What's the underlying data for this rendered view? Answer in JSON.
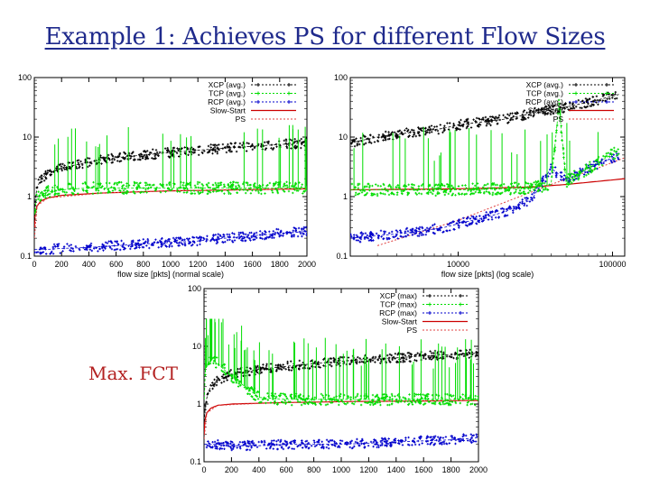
{
  "slide": {
    "title": "Example 1: Achieves PS for different Flow Sizes",
    "annotation": "Max. FCT"
  },
  "colors": {
    "xcp": "#000000",
    "tcp": "#00dd00",
    "rcp": "#0000cc",
    "slowstart": "#cc0000",
    "ps": "#e04040",
    "title": "#1f2a8c"
  },
  "chart_data": [
    {
      "type": "scatter",
      "xlabel": "flow size [pkts] (normal scale)",
      "x_scale": "linear",
      "y_scale": "log",
      "xlim": [
        0,
        2000
      ],
      "ylim": [
        0.1,
        100
      ],
      "xticks": [
        0,
        200,
        400,
        600,
        800,
        1000,
        1200,
        1400,
        1600,
        1800,
        2000
      ],
      "yticks": [
        0.1,
        1,
        10,
        100
      ],
      "legend_position": "top-right",
      "legend": [
        "XCP (avg.)",
        "TCP (avg.)",
        "RCP (avg.)",
        "Slow-Start",
        "PS"
      ],
      "series": [
        {
          "name": "XCP (avg.)",
          "color": "#000000",
          "style": "points",
          "x": [
            2,
            5,
            10,
            20,
            50,
            100,
            200,
            300,
            400,
            500,
            600,
            800,
            1000,
            1200,
            1400,
            1600,
            1800,
            2000
          ],
          "values": [
            0.4,
            0.7,
            1.0,
            1.4,
            2.0,
            2.5,
            3.0,
            3.4,
            3.8,
            4.2,
            4.5,
            5.0,
            5.5,
            6.0,
            6.5,
            7.0,
            7.5,
            8.0
          ]
        },
        {
          "name": "TCP (avg.)",
          "color": "#00dd00",
          "style": "points",
          "x": [
            2,
            10,
            30,
            50,
            100,
            200,
            300,
            400,
            500,
            600,
            800,
            1000,
            1200,
            1400,
            1600,
            1800,
            2000
          ],
          "values": [
            0.5,
            0.8,
            1.0,
            1.1,
            1.2,
            1.3,
            1.35,
            1.4,
            1.4,
            1.4,
            1.4,
            1.4,
            1.4,
            1.4,
            1.4,
            1.4,
            1.4
          ]
        },
        {
          "name": "RCP (avg.)",
          "color": "#0000cc",
          "style": "points",
          "x": [
            2,
            100,
            200,
            400,
            600,
            800,
            1000,
            1200,
            1400,
            1600,
            1800,
            2000
          ],
          "values": [
            0.13,
            0.13,
            0.135,
            0.14,
            0.15,
            0.16,
            0.17,
            0.18,
            0.2,
            0.22,
            0.24,
            0.26
          ]
        },
        {
          "name": "Slow-Start",
          "color": "#cc0000",
          "style": "line",
          "x": [
            1,
            5,
            20,
            50,
            100,
            200,
            500,
            1000,
            2000
          ],
          "values": [
            0.3,
            0.5,
            0.7,
            0.85,
            0.95,
            1.05,
            1.15,
            1.25,
            1.35
          ]
        },
        {
          "name": "PS",
          "color": "#e04040",
          "style": "dotted",
          "x": [
            1,
            20,
            100,
            500,
            1000,
            2000
          ],
          "values": [
            0.2,
            0.7,
            0.95,
            1.15,
            1.25,
            1.35
          ]
        }
      ]
    },
    {
      "type": "scatter",
      "xlabel": "flow size [pkts] (log scale)",
      "x_scale": "log",
      "y_scale": "log",
      "xlim": [
        2000,
        120000
      ],
      "ylim": [
        0.1,
        100
      ],
      "xticks": [
        10000,
        100000
      ],
      "yticks": [
        0.1,
        1,
        10,
        100
      ],
      "legend_position": "top-right",
      "legend": [
        "XCP (avg.)",
        "TCP (avg.)",
        "RCP (avg.)",
        "Slow-Start",
        "PS"
      ],
      "series": [
        {
          "name": "XCP (avg.)",
          "color": "#000000",
          "style": "points",
          "x": [
            2000,
            3000,
            5000,
            8000,
            10000,
            20000,
            30000,
            50000,
            80000,
            110000
          ],
          "values": [
            8,
            10,
            12,
            14,
            16,
            20,
            25,
            32,
            42,
            52
          ]
        },
        {
          "name": "TCP (avg.)",
          "color": "#00dd00",
          "style": "points",
          "x": [
            2000,
            5000,
            10000,
            20000,
            30000,
            40000,
            45000,
            50000,
            70000,
            110000
          ],
          "values": [
            1.3,
            1.3,
            1.3,
            1.35,
            1.4,
            1.6,
            35,
            1.8,
            3,
            6
          ]
        },
        {
          "name": "RCP (avg.)",
          "color": "#0000cc",
          "style": "points",
          "x": [
            2000,
            3000,
            5000,
            8000,
            10000,
            15000,
            20000,
            30000,
            40000,
            50000,
            70000,
            110000
          ],
          "values": [
            0.2,
            0.22,
            0.25,
            0.3,
            0.35,
            0.45,
            0.55,
            0.9,
            3,
            1.9,
            3,
            5
          ]
        },
        {
          "name": "Slow-Start",
          "color": "#cc0000",
          "style": "line",
          "x": [
            2000,
            10000,
            30000,
            50000,
            80000,
            120000
          ],
          "values": [
            1.3,
            1.35,
            1.45,
            1.6,
            1.8,
            2.0
          ]
        },
        {
          "name": "PS",
          "color": "#e04040",
          "style": "dotted",
          "x": [
            3000,
            10000,
            20000,
            40000,
            80000,
            120000
          ],
          "values": [
            0.15,
            0.4,
            0.8,
            1.6,
            3.0,
            4.5
          ]
        }
      ]
    },
    {
      "type": "scatter",
      "xlim": [
        0,
        2000
      ],
      "ylim": [
        0.1,
        100
      ],
      "x_scale": "linear",
      "y_scale": "log",
      "xticks": [
        0,
        200,
        400,
        600,
        800,
        1000,
        1200,
        1400,
        1600,
        1800,
        2000
      ],
      "yticks": [
        0.1,
        1,
        10,
        100
      ],
      "legend_position": "top-right",
      "legend": [
        "XCP (max)",
        "TCP (max)",
        "RCP (max)",
        "Slow-Start",
        "PS"
      ],
      "series": [
        {
          "name": "XCP (max)",
          "color": "#000000",
          "style": "points",
          "x": [
            2,
            10,
            30,
            50,
            100,
            200,
            400,
            600,
            800,
            1000,
            1200,
            1400,
            1600,
            1800,
            2000
          ],
          "values": [
            0.5,
            1.0,
            1.6,
            2.0,
            2.6,
            3.3,
            4.0,
            4.5,
            5.0,
            5.5,
            6.0,
            6.3,
            6.8,
            7.2,
            7.6
          ]
        },
        {
          "name": "TCP (max)",
          "color": "#00dd00",
          "style": "points",
          "x": [
            2,
            10,
            50,
            100,
            200,
            300,
            400,
            600,
            800,
            1000,
            1200,
            1400,
            1600,
            1800,
            2000
          ],
          "values": [
            1.2,
            4.0,
            6.0,
            5.0,
            3.0,
            2.0,
            1.3,
            1.2,
            1.2,
            1.2,
            1.2,
            1.2,
            1.2,
            1.2,
            1.2
          ]
        },
        {
          "name": "RCP (max)",
          "color": "#0000cc",
          "style": "points",
          "x": [
            2,
            100,
            200,
            400,
            600,
            800,
            1000,
            1200,
            1400,
            1600,
            1800,
            2000
          ],
          "values": [
            0.2,
            0.2,
            0.19,
            0.19,
            0.2,
            0.2,
            0.2,
            0.21,
            0.22,
            0.23,
            0.24,
            0.26
          ]
        },
        {
          "name": "Slow-Start",
          "color": "#cc0000",
          "style": "line",
          "x": [
            1,
            5,
            20,
            50,
            100,
            200,
            500,
            1000,
            2000
          ],
          "values": [
            0.3,
            0.5,
            0.7,
            0.85,
            0.95,
            1.0,
            1.05,
            1.1,
            1.15
          ]
        },
        {
          "name": "PS",
          "color": "#e04040",
          "style": "dotted",
          "x": [
            1,
            20,
            100,
            500,
            1000,
            2000
          ],
          "values": [
            0.25,
            0.7,
            0.95,
            1.05,
            1.1,
            1.15
          ]
        }
      ]
    }
  ]
}
